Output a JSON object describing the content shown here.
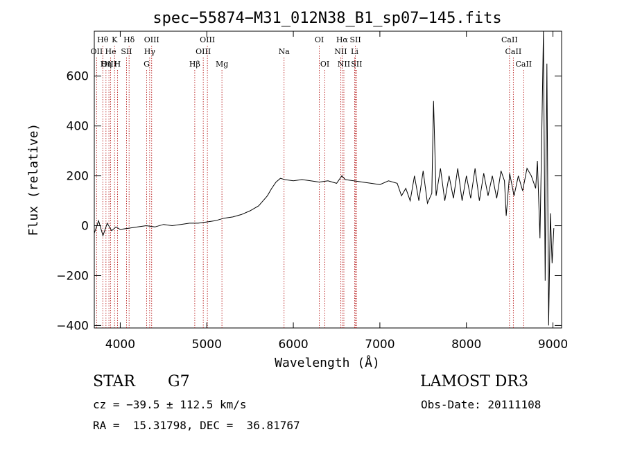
{
  "chart_data": {
    "type": "line",
    "title": "spec−55874−M31_012N38_B1_sp07−145.fits",
    "xlabel": "Wavelength (Å)",
    "ylabel": "Flux (relative)",
    "xlim": [
      3700,
      9100
    ],
    "ylim": [
      -410,
      780
    ],
    "xticks": [
      4000,
      5000,
      6000,
      7000,
      8000,
      9000
    ],
    "xtick_labels": [
      "4000",
      "5000",
      "6000",
      "7000",
      "8000",
      "9000"
    ],
    "yticks": [
      -400,
      -200,
      0,
      200,
      400,
      600
    ],
    "ytick_labels": [
      "−400",
      "−200",
      "0",
      "200",
      "400",
      "600"
    ],
    "grid": false,
    "series": [
      {
        "name": "spectrum",
        "x": [
          3700,
          3750,
          3800,
          3850,
          3900,
          3950,
          4000,
          4100,
          4200,
          4300,
          4400,
          4500,
          4600,
          4700,
          4800,
          4900,
          5000,
          5100,
          5200,
          5300,
          5400,
          5500,
          5600,
          5650,
          5700,
          5750,
          5800,
          5850,
          5900,
          6000,
          6100,
          6200,
          6300,
          6400,
          6500,
          6560,
          6600,
          6700,
          6800,
          6900,
          7000,
          7100,
          7200,
          7250,
          7300,
          7350,
          7400,
          7450,
          7500,
          7550,
          7600,
          7620,
          7650,
          7700,
          7750,
          7800,
          7850,
          7900,
          7950,
          8000,
          8050,
          8100,
          8150,
          8200,
          8250,
          8300,
          8350,
          8400,
          8440,
          8460,
          8500,
          8550,
          8600,
          8650,
          8700,
          8750,
          8800,
          8820,
          8850,
          8870,
          8890,
          8910,
          8930,
          8950,
          8970,
          8990,
          9010
        ],
        "y": [
          -30,
          20,
          -40,
          10,
          -20,
          -5,
          -15,
          -10,
          -5,
          0,
          -5,
          5,
          0,
          5,
          10,
          10,
          15,
          20,
          30,
          35,
          45,
          60,
          80,
          100,
          120,
          150,
          175,
          190,
          185,
          180,
          185,
          180,
          175,
          180,
          170,
          200,
          185,
          180,
          175,
          170,
          165,
          180,
          170,
          120,
          150,
          100,
          200,
          100,
          220,
          90,
          130,
          500,
          120,
          230,
          100,
          200,
          110,
          230,
          100,
          200,
          110,
          230,
          100,
          210,
          120,
          200,
          110,
          220,
          180,
          40,
          210,
          120,
          200,
          140,
          230,
          200,
          150,
          260,
          -50,
          350,
          780,
          -220,
          650,
          -400,
          50,
          -150,
          -10
        ]
      }
    ],
    "line_markers": [
      {
        "label": "Hθ",
        "x": 3798,
        "row": 1
      },
      {
        "label": "OII",
        "x": 3727,
        "row": 2
      },
      {
        "label": "OIII",
        "x": 3869,
        "row": 3
      },
      {
        "label": "He",
        "x": 3889,
        "row": 2
      },
      {
        "label": "Hη",
        "x": 3835,
        "row": 3
      },
      {
        "label": "K",
        "x": 3934,
        "row": 1
      },
      {
        "label": "H",
        "x": 3968,
        "row": 3
      },
      {
        "label": "SII",
        "x": 4072,
        "row": 2
      },
      {
        "label": "Hδ",
        "x": 4102,
        "row": 1
      },
      {
        "label": "OIII",
        "x": 4363,
        "row": 1
      },
      {
        "label": "Hγ",
        "x": 4340,
        "row": 2
      },
      {
        "label": "G",
        "x": 4305,
        "row": 3
      },
      {
        "label": "OIII",
        "x": 5007,
        "row": 1
      },
      {
        "label": "OIII",
        "x": 4959,
        "row": 2
      },
      {
        "label": "Hβ",
        "x": 4861,
        "row": 3
      },
      {
        "label": "Mg",
        "x": 5175,
        "row": 3
      },
      {
        "label": "Na",
        "x": 5893,
        "row": 2
      },
      {
        "label": "OI",
        "x": 6300,
        "row": 1
      },
      {
        "label": "OI",
        "x": 6364,
        "row": 3
      },
      {
        "label": "Hα",
        "x": 6563,
        "row": 1
      },
      {
        "label": "NII",
        "x": 6548,
        "row": 2
      },
      {
        "label": "NII",
        "x": 6584,
        "row": 3
      },
      {
        "label": "SII",
        "x": 6717,
        "row": 1
      },
      {
        "label": "Li",
        "x": 6708,
        "row": 2
      },
      {
        "label": "SII",
        "x": 6731,
        "row": 3
      },
      {
        "label": "CaII",
        "x": 8498,
        "row": 1
      },
      {
        "label": "CaII",
        "x": 8542,
        "row": 2
      },
      {
        "label": "CaII",
        "x": 8662,
        "row": 3
      }
    ]
  },
  "info": {
    "object_class": "STAR",
    "subclass": "G7",
    "survey": "LAMOST DR3",
    "redshift_line": "cz = −39.5 ± 112.5 km/s",
    "obs_date": "Obs-Date: 20111108",
    "coords": "RA =  15.31798, DEC =  36.81767"
  }
}
